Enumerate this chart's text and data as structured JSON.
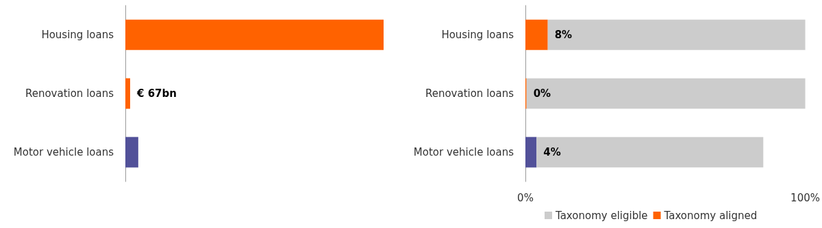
{
  "chart_data": [
    {
      "type": "bar",
      "orientation": "horizontal",
      "xlim": [
        0,
        3600
      ],
      "categories": [
        "Housing loans",
        "Renovation loans",
        "Motor vehicle loans"
      ],
      "values": [
        3600,
        67,
        180
      ],
      "colors": [
        "#ff6200",
        "#ff6200",
        "#525199"
      ],
      "value_labels": [
        null,
        "€ 67bn",
        null
      ]
    },
    {
      "type": "bar",
      "orientation": "horizontal",
      "stacked": true,
      "categories": [
        "Housing loans",
        "Renovation loans",
        "Motor vehicle loans"
      ],
      "xlim": [
        0,
        100
      ],
      "xticks": [
        {
          "value": 0,
          "label": "0%"
        },
        {
          "value": 100,
          "label": "100%"
        }
      ],
      "legend": "bottom",
      "series": [
        {
          "name": "Taxonomy aligned",
          "colors": [
            "#ff6200",
            "#ff6200",
            "#525199"
          ],
          "values": [
            8,
            0.4,
            4
          ],
          "value_labels": [
            "8%",
            "0%",
            "4%"
          ]
        },
        {
          "name": "Taxonomy eligible",
          "color": "#cccccc",
          "values": [
            92,
            99.6,
            81
          ]
        }
      ]
    }
  ]
}
